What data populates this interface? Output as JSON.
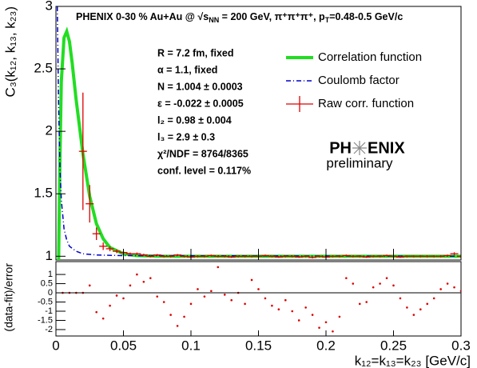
{
  "chart_data": [
    {
      "type": "line",
      "title_parts": [
        "PHENIX 0-30 % Au+Au @ √s",
        "NN",
        " = 200 GeV, π⁺π⁺π⁺, p",
        "T",
        "=0.48-0.5 GeV/c"
      ],
      "y_label": "C₃(k₁₂, k₁₃, k₂₃)",
      "xlim": [
        0,
        0.3
      ],
      "xticks": [
        0,
        0.05,
        0.1,
        0.15,
        0.2,
        0.25,
        0.3
      ],
      "ylim": [
        0.97,
        3
      ],
      "yticks": [
        1,
        1.5,
        2,
        2.5,
        3
      ],
      "fit_parameters": [
        "R = 7.2 fm, fixed",
        "α = 1.1, fixed",
        "N = 1.004 ± 0.0003",
        "ε = -0.022 ± 0.0005",
        "l₂ = 0.98 ± 0.004",
        "l₃ = 2.9 ± 0.3",
        "χ²/NDF = 8764/8365",
        "conf. level = 0.117%"
      ],
      "logo": [
        "PH",
        "ENIX"
      ],
      "logo_subtitle": "preliminary",
      "series": [
        {
          "name": "Correlation function",
          "color": "#22dd22",
          "style": "solid",
          "x": [
            0.002,
            0.003,
            0.004,
            0.006,
            0.008,
            0.01,
            0.012,
            0.015,
            0.02,
            0.025,
            0.03,
            0.035,
            0.04,
            0.05,
            0.06,
            0.08,
            0.3
          ],
          "values": [
            0.97,
            1.8,
            2.4,
            2.75,
            2.8,
            2.72,
            2.55,
            2.25,
            1.82,
            1.48,
            1.26,
            1.14,
            1.07,
            1.02,
            1.005,
            1.0,
            1.0
          ]
        },
        {
          "name": "Coulomb factor",
          "color": "#0000cc",
          "style": "dashdot",
          "x": [
            0.001,
            0.002,
            0.003,
            0.004,
            0.006,
            0.008,
            0.01,
            0.015,
            0.02,
            0.03,
            0.05,
            0.3
          ],
          "values": [
            3.0,
            2.2,
            1.7,
            1.45,
            1.22,
            1.13,
            1.08,
            1.04,
            1.02,
            1.01,
            1.005,
            1.0
          ]
        },
        {
          "name": "Raw corr. function",
          "color": "#dd0000",
          "style": "errorbar",
          "x": [
            0.02,
            0.025,
            0.03,
            0.035,
            0.04,
            0.045,
            0.05,
            0.055,
            0.06,
            0.065,
            0.07,
            0.075,
            0.08,
            0.085,
            0.09,
            0.095,
            0.1,
            0.105,
            0.11,
            0.115,
            0.12,
            0.125,
            0.13,
            0.135,
            0.14,
            0.145,
            0.15,
            0.155,
            0.16,
            0.165,
            0.17,
            0.175,
            0.18,
            0.185,
            0.19,
            0.195,
            0.2,
            0.205,
            0.21,
            0.215,
            0.22,
            0.225,
            0.23,
            0.235,
            0.24,
            0.245,
            0.25,
            0.255,
            0.26,
            0.265,
            0.27,
            0.275,
            0.28,
            0.285,
            0.29,
            0.295,
            0.3
          ],
          "values": [
            1.84,
            1.42,
            1.18,
            1.08,
            1.06,
            1.04,
            1.03,
            1.02,
            1.02,
            1.01,
            1.0,
            1.01,
            1.0,
            1.0,
            1.01,
            1.0,
            0.995,
            1.0,
            1.0,
            1.005,
            1.0,
            1.0,
            0.995,
            1.0,
            1.0,
            1.0,
            1.0,
            1.005,
            1.0,
            0.995,
            1.0,
            1.0,
            0.995,
            1.0,
            0.99,
            1.0,
            0.995,
            1.0,
            1.0,
            1.005,
            1.0,
            1.0,
            0.995,
            1.0,
            1.0,
            1.005,
            1.0,
            0.995,
            1.0,
            1.0,
            1.0,
            1.0,
            1.0,
            1.0,
            1.005,
            1.02,
            1.0
          ],
          "errors": [
            0.47,
            0.15,
            0.05,
            0.03,
            0.02,
            0.015,
            0.012,
            0.01,
            0.01,
            0.01,
            0.008,
            0.008,
            0.008,
            0.008,
            0.008,
            0.008,
            0.008,
            0.008,
            0.008,
            0.008,
            0.008,
            0.008,
            0.008,
            0.008,
            0.008,
            0.008,
            0.008,
            0.008,
            0.008,
            0.008,
            0.008,
            0.008,
            0.008,
            0.008,
            0.008,
            0.008,
            0.008,
            0.008,
            0.008,
            0.008,
            0.008,
            0.008,
            0.008,
            0.008,
            0.008,
            0.008,
            0.008,
            0.008,
            0.008,
            0.008,
            0.008,
            0.008,
            0.008,
            0.008,
            0.008,
            0.012,
            0.012
          ]
        }
      ]
    },
    {
      "type": "scatter",
      "y_label": "(data-fit)/error",
      "x_label": "k₁₂=k₁₃=k₂₃ [GeV/c]",
      "xlim": [
        0,
        0.3
      ],
      "xticks": [
        0,
        0.05,
        0.1,
        0.15,
        0.2,
        0.25,
        0.3
      ],
      "ylim": [
        -2.35,
        1.7
      ],
      "yticks": [
        -2,
        -1.5,
        -1,
        -0.5,
        0,
        0.5,
        1
      ],
      "color": "#dd0000",
      "x": [
        0.005,
        0.01,
        0.015,
        0.02,
        0.025,
        0.03,
        0.035,
        0.04,
        0.045,
        0.05,
        0.055,
        0.06,
        0.065,
        0.07,
        0.075,
        0.08,
        0.085,
        0.09,
        0.095,
        0.1,
        0.105,
        0.11,
        0.115,
        0.12,
        0.125,
        0.13,
        0.135,
        0.14,
        0.145,
        0.15,
        0.155,
        0.16,
        0.165,
        0.17,
        0.175,
        0.18,
        0.185,
        0.19,
        0.195,
        0.2,
        0.205,
        0.21,
        0.215,
        0.22,
        0.225,
        0.23,
        0.235,
        0.24,
        0.245,
        0.25,
        0.255,
        0.26,
        0.265,
        0.27,
        0.275,
        0.28,
        0.285,
        0.29,
        0.295,
        0.3
      ],
      "values": [
        0,
        0,
        0,
        0,
        0.4,
        -1.05,
        -1.4,
        -0.7,
        -0.15,
        -0.3,
        0.4,
        1.0,
        0.6,
        0.8,
        -0.2,
        -0.5,
        -1.2,
        -1.8,
        -1.3,
        -0.6,
        0.2,
        -0.2,
        0.1,
        1.4,
        -0.1,
        -0.4,
        0.0,
        -0.6,
        0.7,
        0.2,
        -0.3,
        -0.7,
        -0.9,
        -0.4,
        -1.0,
        -1.5,
        -0.8,
        -1.2,
        -1.9,
        -1.6,
        -2.1,
        -1.3,
        0.8,
        0.5,
        -0.6,
        -0.5,
        0.3,
        0.5,
        0.8,
        0.4,
        -0.3,
        -0.8,
        -1.2,
        -0.9,
        -0.6,
        -0.3,
        0.2,
        0.5,
        0.3,
        0.1
      ]
    }
  ]
}
